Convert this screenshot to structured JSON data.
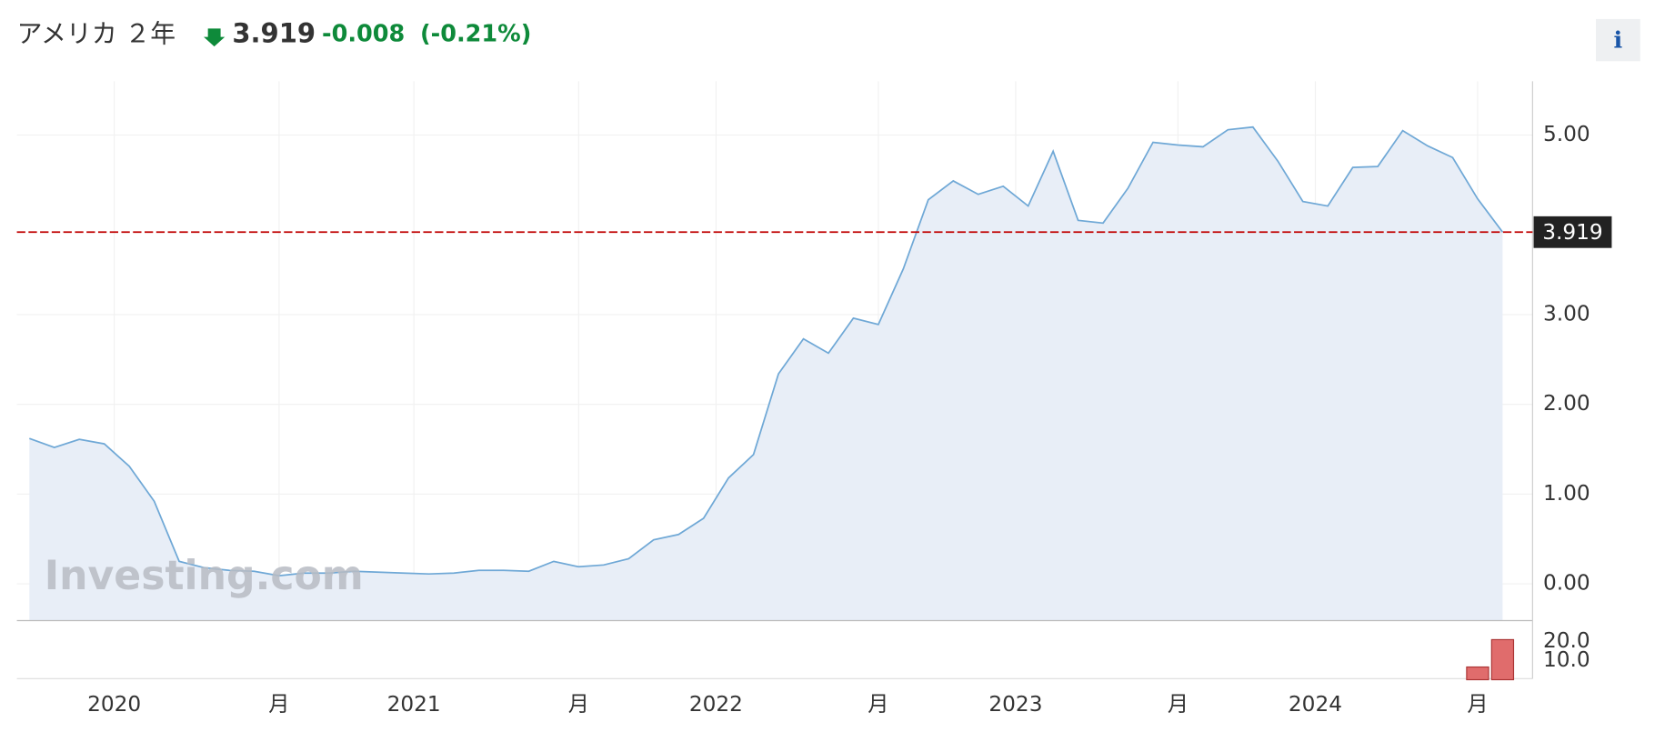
{
  "header": {
    "title": "アメリカ ２年",
    "price": "3.919",
    "change": "-0.008",
    "change_pct": "(-0.21%)",
    "info": "i"
  },
  "watermark": "Investing.com",
  "chart_data": {
    "type": "line",
    "x": [
      0,
      1,
      2,
      3,
      4,
      5,
      6,
      7,
      8,
      9,
      10,
      11,
      12,
      13,
      14,
      15,
      16,
      17,
      18,
      19,
      20,
      21,
      22,
      23,
      24,
      25,
      26,
      27,
      28,
      29,
      30,
      31,
      32,
      33,
      34,
      35,
      36,
      37,
      38,
      39,
      40,
      41,
      42,
      43,
      44,
      45,
      46,
      47,
      48,
      49,
      50,
      51,
      52,
      53,
      54,
      55,
      56,
      57,
      58,
      59
    ],
    "series": [
      {
        "name": "アメリカ ２年",
        "color": "#6fa8d6",
        "values": [
          1.62,
          1.52,
          1.61,
          1.56,
          1.31,
          0.92,
          0.25,
          0.18,
          0.15,
          0.14,
          0.09,
          0.12,
          0.12,
          0.14,
          0.13,
          0.12,
          0.11,
          0.12,
          0.15,
          0.15,
          0.14,
          0.25,
          0.19,
          0.21,
          0.28,
          0.49,
          0.55,
          0.73,
          1.18,
          1.44,
          2.34,
          2.73,
          2.57,
          2.96,
          2.89,
          3.51,
          4.28,
          4.49,
          4.34,
          4.43,
          4.21,
          4.82,
          4.05,
          4.02,
          4.41,
          4.92,
          4.89,
          4.87,
          5.06,
          5.09,
          4.71,
          4.26,
          4.21,
          4.64,
          4.65,
          5.05,
          4.88,
          4.75,
          4.29,
          3.919
        ]
      }
    ],
    "xlim": [
      -0.5,
      60.2
    ],
    "xticks": [
      {
        "value": 3.4,
        "label": "2020"
      },
      {
        "value": 10,
        "label": "月"
      },
      {
        "value": 15.4,
        "label": "2021"
      },
      {
        "value": 22,
        "label": "月"
      },
      {
        "value": 27.5,
        "label": "2022"
      },
      {
        "value": 34,
        "label": "月"
      },
      {
        "value": 39.5,
        "label": "2023"
      },
      {
        "value": 46,
        "label": "月"
      },
      {
        "value": 51.5,
        "label": "2024"
      },
      {
        "value": 58,
        "label": "月"
      }
    ],
    "ylim": [
      -0.41,
      5.6
    ],
    "yticks": [
      {
        "value": 0,
        "label": "0.00"
      },
      {
        "value": 1,
        "label": "1.00"
      },
      {
        "value": 2,
        "label": "2.00"
      },
      {
        "value": 3,
        "label": "3.00"
      },
      {
        "value": 5,
        "label": "5.00"
      }
    ],
    "reference": {
      "value": 3.919,
      "label": "3.919",
      "color": "#c00000"
    },
    "grid": true,
    "volume": {
      "x": [
        58,
        59
      ],
      "values": [
        6.7,
        21.1
      ],
      "color": "#e06c6c",
      "ylim": [
        0,
        30
      ],
      "yticks": [
        {
          "value": 10,
          "label": "10.0"
        },
        {
          "value": 20,
          "label": "20.0"
        }
      ]
    }
  }
}
